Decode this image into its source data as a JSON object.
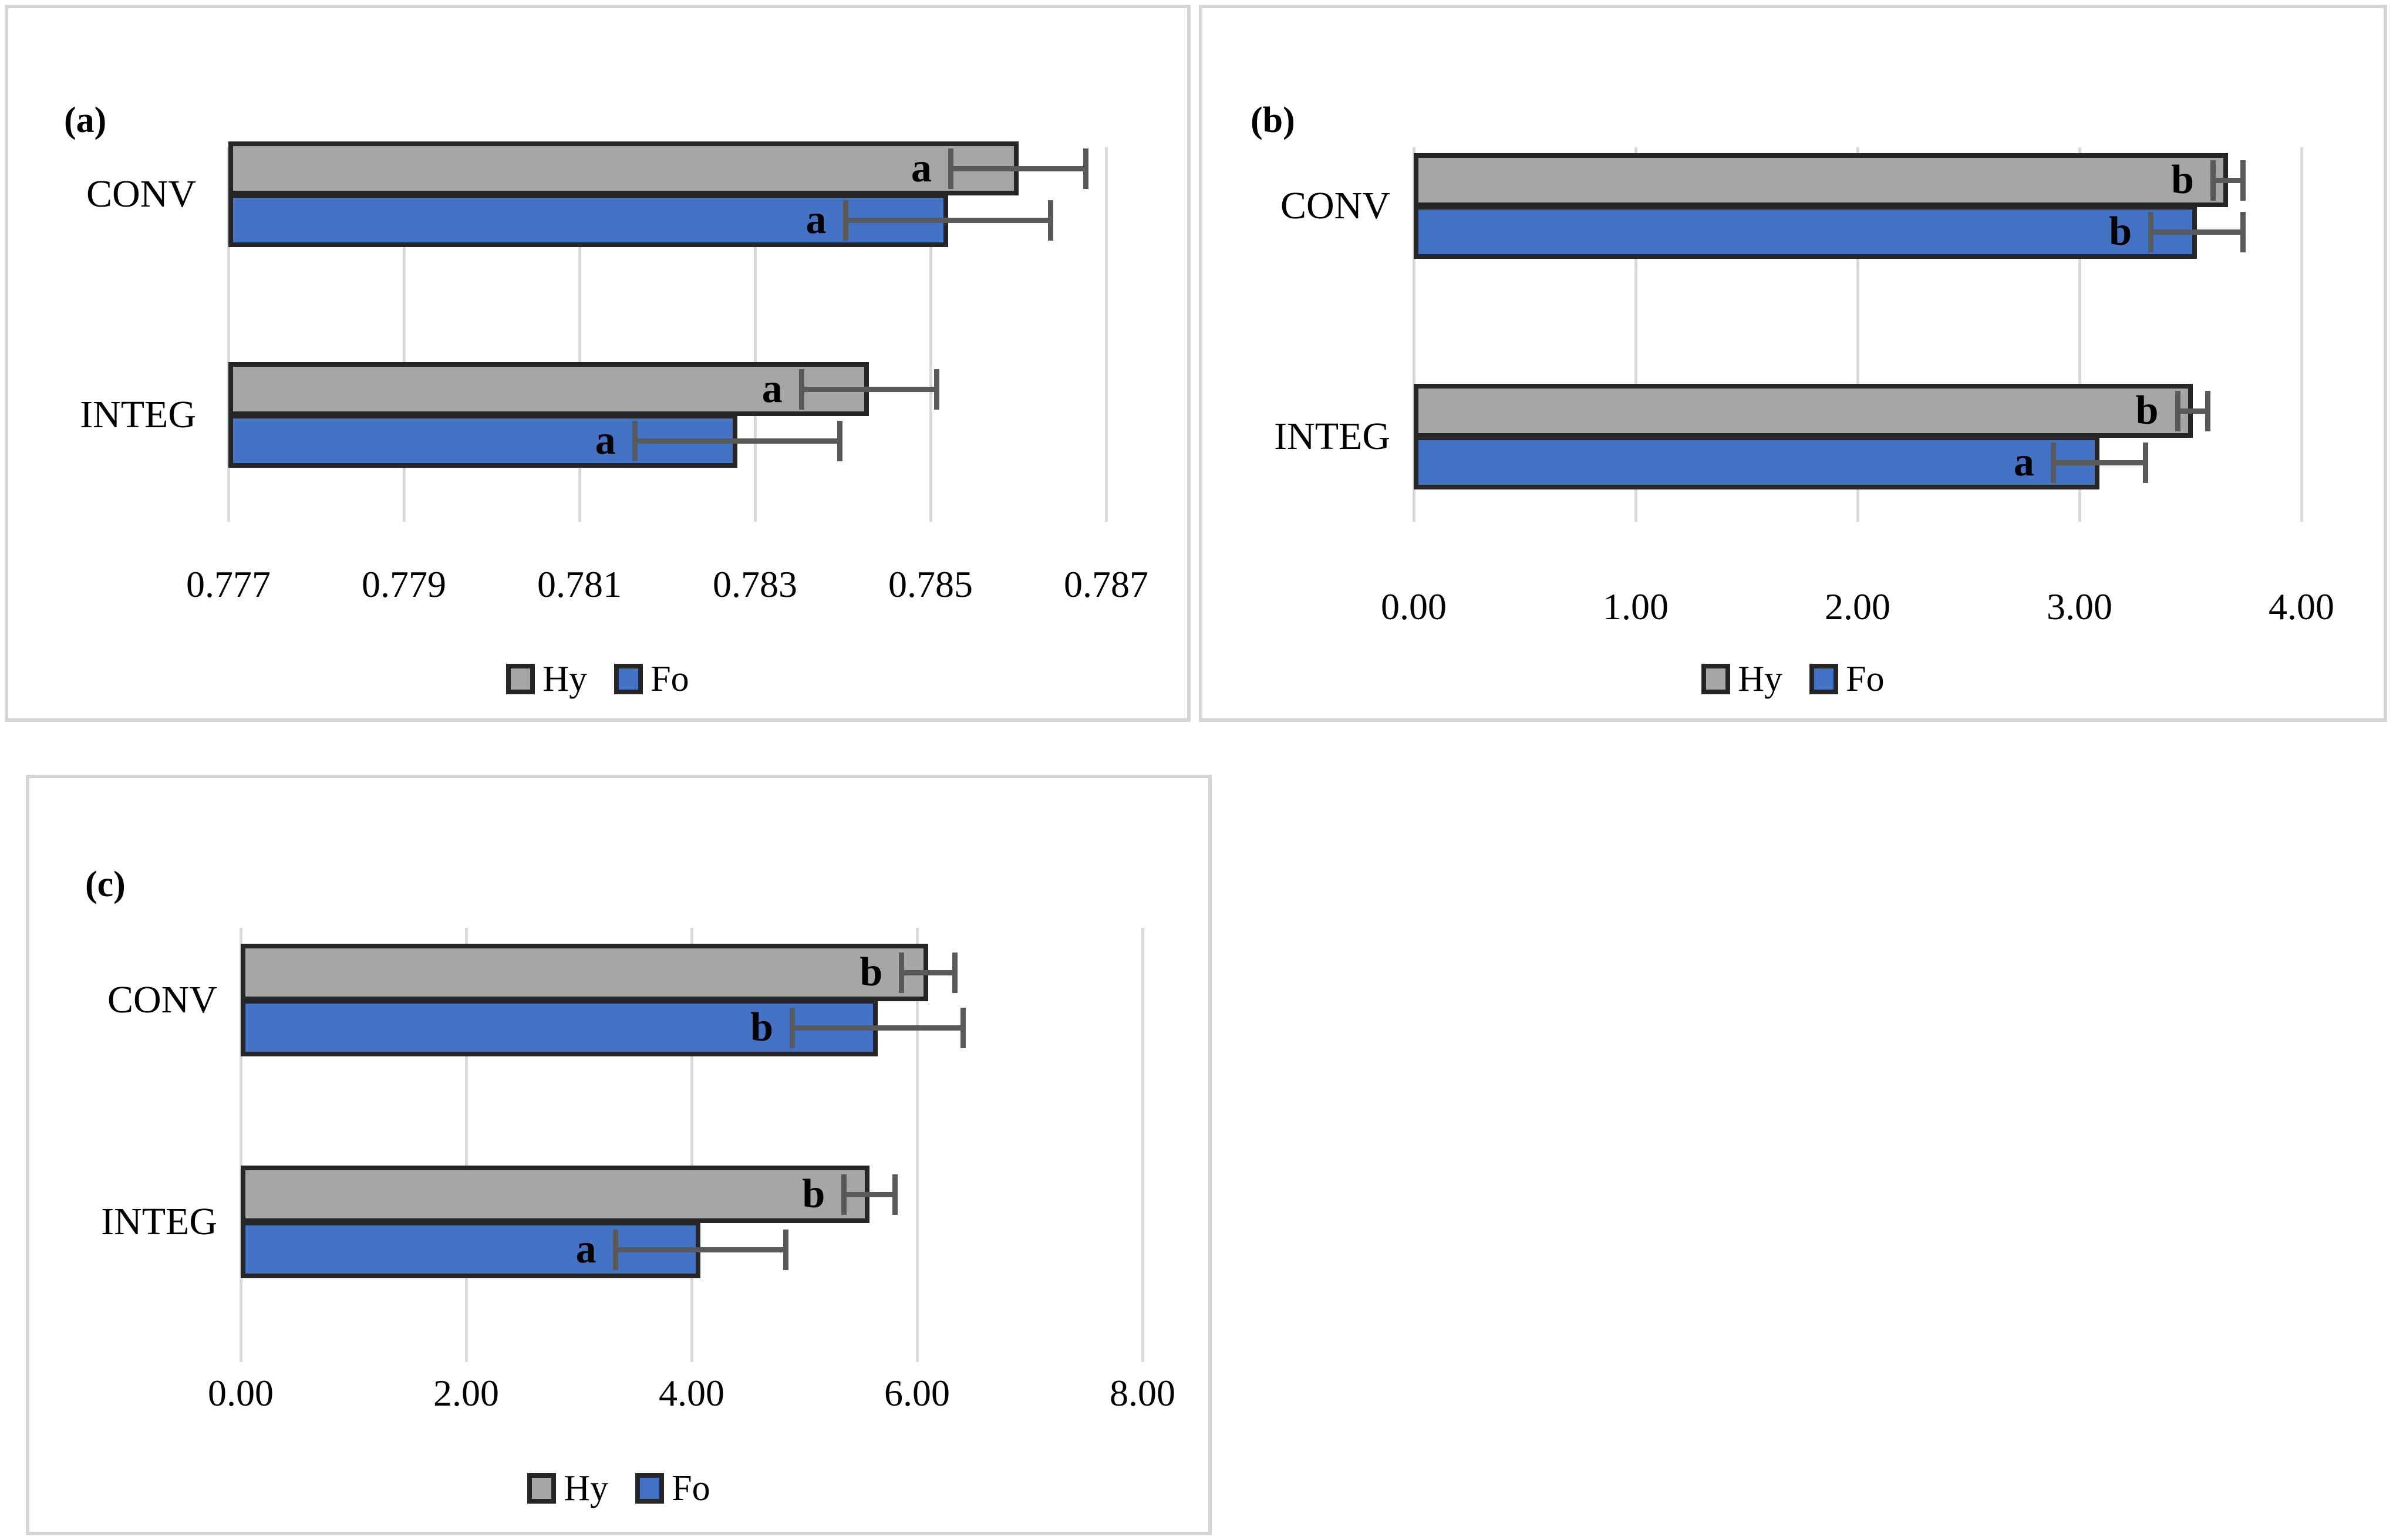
{
  "styles": {
    "hy_color": "#A6A6A6",
    "fo_color": "#4472C4",
    "bar_border_color": "#262626",
    "error_bar_color": "#595959",
    "gridline_color": "#D9D9D9",
    "panel_border_color": "#D5D5D5",
    "text_color": "#000000"
  },
  "chart_data": [
    {
      "type": "bar",
      "orientation": "horizontal",
      "panel_label": "(a)",
      "categories": [
        "CONV",
        "INTEG"
      ],
      "series": [
        {
          "name": "Hy",
          "color": "#A6A6A6",
          "values": [
            0.786,
            0.7843
          ],
          "errors": [
            0.0008,
            0.0008
          ],
          "sig_letters": [
            "a",
            "a"
          ]
        },
        {
          "name": "Fo",
          "color": "#4472C4",
          "values": [
            0.7852,
            0.7828
          ],
          "errors": [
            0.0012,
            0.0012
          ],
          "sig_letters": [
            "a",
            "a"
          ]
        }
      ],
      "xlim": [
        0.777,
        0.787
      ],
      "xticks": [
        0.777,
        0.779,
        0.781,
        0.783,
        0.785,
        0.787
      ],
      "xtick_labels": [
        "0.777",
        "0.779",
        "0.781",
        "0.783",
        "0.785",
        "0.787"
      ],
      "grid": true,
      "legend": [
        "Hy",
        "Fo"
      ],
      "legend_position": "bottom"
    },
    {
      "type": "bar",
      "orientation": "horizontal",
      "panel_label": "(b)",
      "categories": [
        "CONV",
        "INTEG"
      ],
      "series": [
        {
          "name": "Hy",
          "color": "#A6A6A6",
          "values": [
            3.67,
            3.51
          ],
          "errors": [
            0.08,
            0.08
          ],
          "sig_letters": [
            "b",
            "b"
          ]
        },
        {
          "name": "Fo",
          "color": "#4472C4",
          "values": [
            3.53,
            3.09
          ],
          "errors": [
            0.22,
            0.22
          ],
          "sig_letters": [
            "b",
            "a"
          ]
        }
      ],
      "xlim": [
        0,
        4
      ],
      "xticks": [
        0,
        1,
        2,
        3,
        4
      ],
      "xtick_labels": [
        "0.00",
        "1.00",
        "2.00",
        "3.00",
        "4.00"
      ],
      "grid": true,
      "legend": [
        "Hy",
        "Fo"
      ],
      "legend_position": "bottom"
    },
    {
      "type": "bar",
      "orientation": "horizontal",
      "panel_label": "(c)",
      "categories": [
        "CONV",
        "INTEG"
      ],
      "series": [
        {
          "name": "Hy",
          "color": "#A6A6A6",
          "values": [
            6.1,
            5.58
          ],
          "errors": [
            0.26,
            0.25
          ],
          "sig_letters": [
            "b",
            "b"
          ]
        },
        {
          "name": "Fo",
          "color": "#4472C4",
          "values": [
            5.65,
            4.08
          ],
          "errors": [
            0.78,
            0.78
          ],
          "sig_letters": [
            "b",
            "a"
          ]
        }
      ],
      "xlim": [
        0,
        8
      ],
      "xticks": [
        0,
        2,
        4,
        6,
        8
      ],
      "xtick_labels": [
        "0.00",
        "2.00",
        "4.00",
        "6.00",
        "8.00"
      ],
      "grid": true,
      "legend": [
        "Hy",
        "Fo"
      ],
      "legend_position": "bottom"
    }
  ]
}
